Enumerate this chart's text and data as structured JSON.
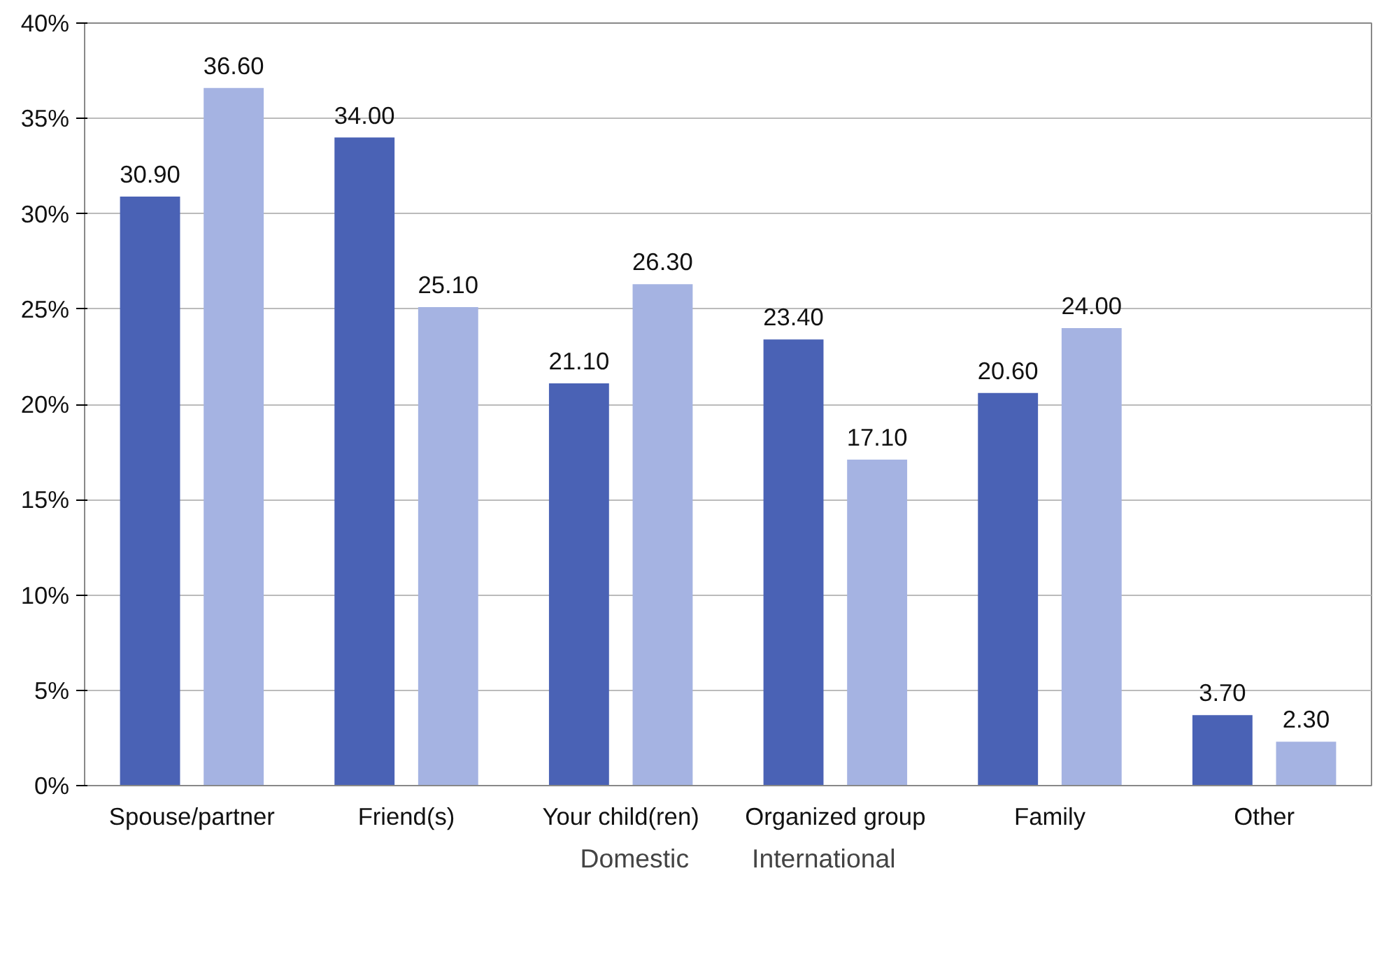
{
  "chart_data": {
    "type": "bar",
    "categories": [
      "Spouse/partner",
      "Friend(s)",
      "Your child(ren)",
      "Organized group",
      "Family",
      "Other"
    ],
    "series": [
      {
        "name": "Domestic",
        "color": "#4a62b5",
        "values": [
          30.9,
          34.0,
          21.1,
          23.4,
          20.6,
          3.7
        ],
        "value_labels": [
          "30.90",
          "34.00",
          "21.10",
          "23.40",
          "20.60",
          "3.70"
        ]
      },
      {
        "name": "International",
        "color": "#a5b3e2",
        "values": [
          36.6,
          25.1,
          26.3,
          17.1,
          24.0,
          2.3
        ],
        "value_labels": [
          "36.60",
          "25.10",
          "26.30",
          "17.10",
          "24.00",
          "2.30"
        ]
      }
    ],
    "ylim": [
      0,
      40
    ],
    "yticks": [
      {
        "value": 0,
        "label": "0%"
      },
      {
        "value": 5,
        "label": "5%"
      },
      {
        "value": 10,
        "label": "10%"
      },
      {
        "value": 15,
        "label": "15%"
      },
      {
        "value": 20,
        "label": "20%"
      },
      {
        "value": 25,
        "label": "25%"
      },
      {
        "value": 30,
        "label": "30%"
      },
      {
        "value": 35,
        "label": "35%"
      },
      {
        "value": 40,
        "label": "40%"
      }
    ],
    "grid": "y",
    "legend": "bottom"
  }
}
